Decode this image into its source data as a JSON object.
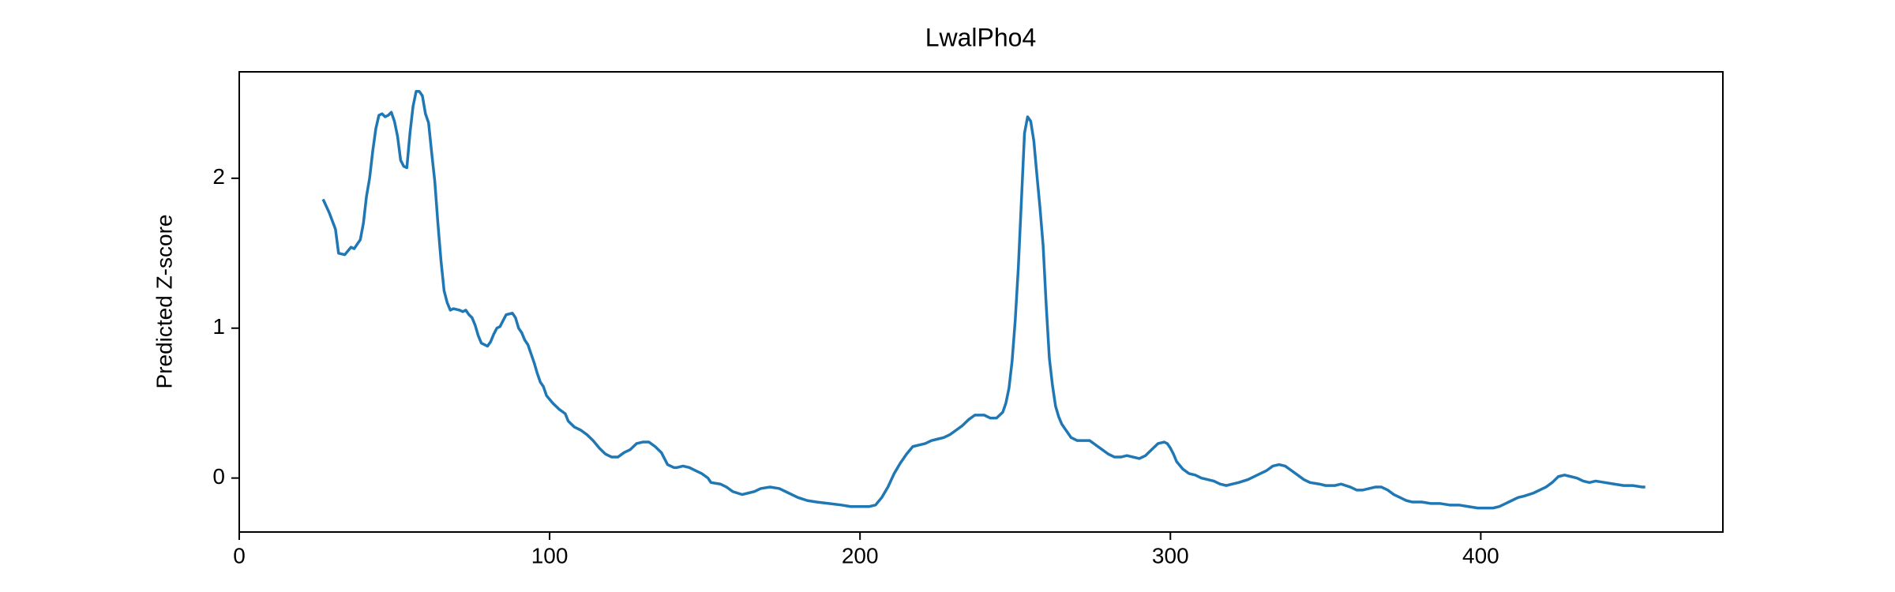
{
  "chart_data": {
    "type": "line",
    "title": "LwalPho4",
    "ylabel": "Predicted Z-score",
    "color": "#1f77b4",
    "x": [
      27,
      29,
      31,
      32,
      34,
      36,
      37,
      39,
      40,
      41,
      42,
      43,
      44,
      45,
      46,
      47,
      48,
      49,
      50,
      51,
      52,
      53,
      54,
      55,
      56,
      57,
      58,
      59,
      60,
      61,
      62,
      63,
      64,
      65,
      66,
      67,
      68,
      69,
      71,
      72,
      73,
      74,
      75,
      76,
      77,
      78,
      80,
      81,
      82,
      83,
      84,
      85,
      86,
      88,
      89,
      90,
      91,
      92,
      93,
      94,
      95,
      96,
      97,
      98,
      99,
      101,
      103,
      105,
      106,
      108,
      110,
      112,
      114,
      116,
      118,
      120,
      122,
      124,
      126,
      128,
      130,
      132,
      134,
      136,
      137,
      138,
      140,
      141,
      143,
      145,
      147,
      149,
      151,
      152,
      155,
      157,
      159,
      162,
      164,
      166,
      168,
      171,
      174,
      177,
      180,
      183,
      186,
      190,
      194,
      197,
      200,
      203,
      205,
      207,
      209,
      211,
      213,
      215,
      217,
      219,
      221,
      223,
      225,
      227,
      229,
      231,
      233,
      235,
      237,
      240,
      242,
      244,
      246,
      247,
      248,
      249,
      250,
      251,
      252,
      253,
      254,
      255,
      256,
      257,
      258,
      259,
      260,
      261,
      262,
      263,
      264,
      265,
      266,
      267,
      268,
      270,
      272,
      274,
      276,
      278,
      280,
      282,
      284,
      286,
      288,
      290,
      292,
      294,
      296,
      298,
      299,
      300,
      301,
      302,
      304,
      306,
      308,
      310,
      312,
      314,
      316,
      318,
      320,
      322,
      325,
      328,
      331,
      333,
      335,
      337,
      339,
      341,
      343,
      345,
      348,
      350,
      353,
      355,
      358,
      360,
      362,
      364,
      366,
      368,
      370,
      372,
      374,
      376,
      378,
      381,
      384,
      387,
      390,
      393,
      396,
      399,
      402,
      404,
      406,
      408,
      410,
      412,
      414,
      417,
      419,
      421,
      423,
      425,
      427,
      429,
      431,
      433,
      435,
      437,
      440,
      443,
      446,
      449,
      452,
      453
    ],
    "values": [
      1.86,
      1.77,
      1.66,
      1.5,
      1.49,
      1.54,
      1.53,
      1.59,
      1.7,
      1.88,
      2.0,
      2.18,
      2.33,
      2.42,
      2.43,
      2.41,
      2.42,
      2.44,
      2.38,
      2.28,
      2.12,
      2.08,
      2.07,
      2.3,
      2.48,
      2.58,
      2.58,
      2.55,
      2.43,
      2.37,
      2.17,
      1.98,
      1.7,
      1.45,
      1.25,
      1.17,
      1.12,
      1.13,
      1.12,
      1.11,
      1.12,
      1.09,
      1.07,
      1.02,
      0.95,
      0.9,
      0.88,
      0.91,
      0.96,
      1.0,
      1.01,
      1.05,
      1.09,
      1.1,
      1.07,
      1.0,
      0.97,
      0.92,
      0.89,
      0.83,
      0.77,
      0.7,
      0.64,
      0.61,
      0.55,
      0.5,
      0.46,
      0.43,
      0.38,
      0.34,
      0.32,
      0.29,
      0.25,
      0.2,
      0.16,
      0.14,
      0.14,
      0.17,
      0.19,
      0.23,
      0.24,
      0.24,
      0.21,
      0.17,
      0.13,
      0.09,
      0.07,
      0.07,
      0.08,
      0.07,
      0.05,
      0.03,
      0.0,
      -0.03,
      -0.04,
      -0.06,
      -0.09,
      -0.11,
      -0.1,
      -0.09,
      -0.07,
      -0.06,
      -0.07,
      -0.1,
      -0.13,
      -0.15,
      -0.16,
      -0.17,
      -0.18,
      -0.19,
      -0.19,
      -0.19,
      -0.18,
      -0.13,
      -0.06,
      0.03,
      0.1,
      0.16,
      0.21,
      0.22,
      0.23,
      0.25,
      0.26,
      0.27,
      0.29,
      0.32,
      0.35,
      0.39,
      0.42,
      0.42,
      0.4,
      0.4,
      0.44,
      0.5,
      0.6,
      0.78,
      1.05,
      1.4,
      1.85,
      2.3,
      2.41,
      2.38,
      2.25,
      2.02,
      1.8,
      1.55,
      1.15,
      0.8,
      0.62,
      0.48,
      0.41,
      0.36,
      0.33,
      0.3,
      0.27,
      0.25,
      0.25,
      0.25,
      0.22,
      0.19,
      0.16,
      0.14,
      0.14,
      0.15,
      0.14,
      0.13,
      0.15,
      0.19,
      0.23,
      0.24,
      0.23,
      0.2,
      0.16,
      0.11,
      0.06,
      0.03,
      0.02,
      0.0,
      -0.01,
      -0.02,
      -0.04,
      -0.05,
      -0.04,
      -0.03,
      -0.01,
      0.02,
      0.05,
      0.08,
      0.09,
      0.08,
      0.05,
      0.02,
      -0.01,
      -0.03,
      -0.04,
      -0.05,
      -0.05,
      -0.04,
      -0.06,
      -0.08,
      -0.08,
      -0.07,
      -0.06,
      -0.06,
      -0.08,
      -0.11,
      -0.13,
      -0.15,
      -0.16,
      -0.16,
      -0.17,
      -0.17,
      -0.18,
      -0.18,
      -0.19,
      -0.2,
      -0.2,
      -0.2,
      -0.19,
      -0.17,
      -0.15,
      -0.13,
      -0.12,
      -0.1,
      -0.08,
      -0.06,
      -0.03,
      0.01,
      0.02,
      0.01,
      0.0,
      -0.02,
      -0.03,
      -0.02,
      -0.03,
      -0.04,
      -0.05,
      -0.05,
      -0.06,
      -0.06
    ],
    "xlim": [
      0,
      478
    ],
    "ylim": [
      -0.36,
      2.71
    ],
    "xticks": [
      0,
      100,
      200,
      300,
      400
    ],
    "yticks": [
      0,
      1,
      2
    ]
  }
}
